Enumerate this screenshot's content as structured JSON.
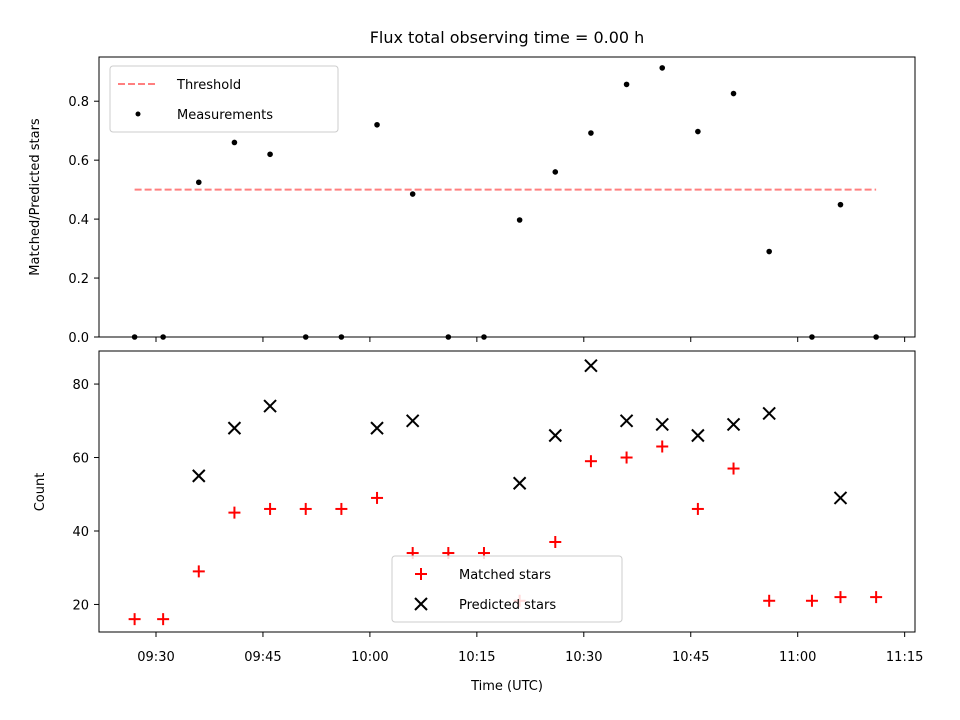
{
  "chart_data": [
    {
      "type": "scatter",
      "title": "Flux total observing time = 0.00 h",
      "ylabel": "Matched/Predicted stars",
      "xlabel": "",
      "ylim": [
        0,
        0.95
      ],
      "yticks": [
        "0.0",
        "0.2",
        "0.4",
        "0.6",
        "0.8"
      ],
      "legend_position": "upper-left",
      "threshold": {
        "name": "Threshold",
        "value": 0.5,
        "x_start": "09:27",
        "x_end": "11:11",
        "color": "#ff7f7f",
        "style": "dashed"
      },
      "series": [
        {
          "name": "Measurements",
          "color": "#000000",
          "marker": "dot",
          "points": [
            {
              "x": "09:27",
              "y": 0.0
            },
            {
              "x": "09:31",
              "y": 0.0
            },
            {
              "x": "09:36",
              "y": 0.525
            },
            {
              "x": "09:41",
              "y": 0.66
            },
            {
              "x": "09:46",
              "y": 0.62
            },
            {
              "x": "09:51",
              "y": 0.0
            },
            {
              "x": "09:56",
              "y": 0.0
            },
            {
              "x": "10:01",
              "y": 0.72
            },
            {
              "x": "10:06",
              "y": 0.485
            },
            {
              "x": "10:11",
              "y": 0.0
            },
            {
              "x": "10:16",
              "y": 0.0
            },
            {
              "x": "10:21",
              "y": 0.397
            },
            {
              "x": "10:26",
              "y": 0.56
            },
            {
              "x": "10:31",
              "y": 0.692
            },
            {
              "x": "10:36",
              "y": 0.857
            },
            {
              "x": "10:41",
              "y": 0.913
            },
            {
              "x": "10:46",
              "y": 0.697
            },
            {
              "x": "10:51",
              "y": 0.826
            },
            {
              "x": "10:56",
              "y": 0.29
            },
            {
              "x": "11:02",
              "y": 0.0
            },
            {
              "x": "11:06",
              "y": 0.449
            },
            {
              "x": "11:11",
              "y": 0.0
            }
          ]
        }
      ]
    },
    {
      "type": "scatter",
      "title": "",
      "xlabel": "Time (UTC)",
      "ylabel": "Count",
      "ylim": [
        12.5,
        89
      ],
      "yticks": [
        "20",
        "40",
        "60",
        "80"
      ],
      "xticks": [
        "09:30",
        "09:45",
        "10:00",
        "10:15",
        "10:30",
        "10:45",
        "11:00",
        "11:15"
      ],
      "legend_position": "lower-center",
      "series": [
        {
          "name": "Matched stars",
          "color": "#ff0000",
          "marker": "plus",
          "points": [
            {
              "x": "09:27",
              "y": 16
            },
            {
              "x": "09:31",
              "y": 16
            },
            {
              "x": "09:36",
              "y": 29
            },
            {
              "x": "09:41",
              "y": 45
            },
            {
              "x": "09:46",
              "y": 46
            },
            {
              "x": "09:51",
              "y": 46
            },
            {
              "x": "09:56",
              "y": 46
            },
            {
              "x": "10:01",
              "y": 49
            },
            {
              "x": "10:06",
              "y": 34
            },
            {
              "x": "10:11",
              "y": 34
            },
            {
              "x": "10:16",
              "y": 34
            },
            {
              "x": "10:21",
              "y": 21
            },
            {
              "x": "10:26",
              "y": 37
            },
            {
              "x": "10:31",
              "y": 59
            },
            {
              "x": "10:36",
              "y": 60
            },
            {
              "x": "10:41",
              "y": 63
            },
            {
              "x": "10:46",
              "y": 46
            },
            {
              "x": "10:51",
              "y": 57
            },
            {
              "x": "10:56",
              "y": 21
            },
            {
              "x": "11:02",
              "y": 21
            },
            {
              "x": "11:06",
              "y": 22
            },
            {
              "x": "11:11",
              "y": 22
            }
          ]
        },
        {
          "name": "Predicted stars",
          "color": "#000000",
          "marker": "x",
          "points": [
            {
              "x": "09:36",
              "y": 55
            },
            {
              "x": "09:41",
              "y": 68
            },
            {
              "x": "09:46",
              "y": 74
            },
            {
              "x": "10:01",
              "y": 68
            },
            {
              "x": "10:06",
              "y": 70
            },
            {
              "x": "10:21",
              "y": 53
            },
            {
              "x": "10:26",
              "y": 66
            },
            {
              "x": "10:31",
              "y": 85
            },
            {
              "x": "10:36",
              "y": 70
            },
            {
              "x": "10:41",
              "y": 69
            },
            {
              "x": "10:46",
              "y": 66
            },
            {
              "x": "10:51",
              "y": 69
            },
            {
              "x": "10:56",
              "y": 72
            },
            {
              "x": "11:06",
              "y": 49
            }
          ]
        }
      ]
    }
  ]
}
